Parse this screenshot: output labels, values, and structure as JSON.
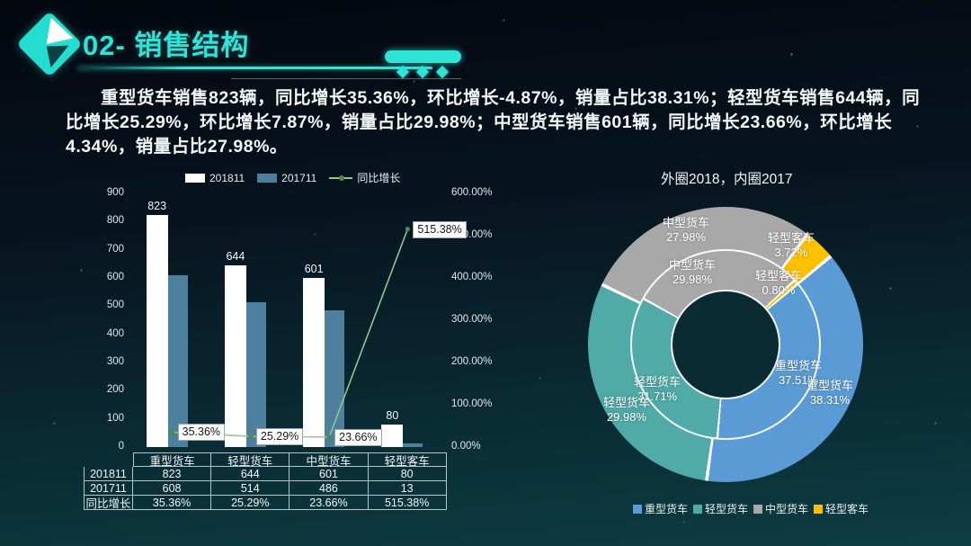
{
  "slide": {
    "title": "02- 销售结构",
    "summary": "重型货车销售823辆，同比增长35.36%，环比增长-4.87%，销量占比38.31%；轻型货车销售644辆，同比增长25.29%，环比增长7.87%，销量占比29.98%；中型货车销售601辆，同比增长23.66%，环比增长4.34%，销量占比27.98%。"
  },
  "colors": {
    "accent_cyan": "#2fe3d7",
    "bar_white": "#ffffff",
    "bar_blue": "#4d7f9e",
    "line_green": "#8bcb8b",
    "marker_green": "#4e8c4a",
    "donut_heavy": "#5b9bd5",
    "donut_light": "#4faaa8",
    "donut_medium": "#a8a8a8",
    "donut_bus": "#ffc000"
  },
  "chart_data": [
    {
      "type": "bar",
      "categories": [
        "重型货车",
        "轻型货车",
        "中型货车",
        "轻型客车"
      ],
      "series": [
        {
          "name": "201811",
          "kind": "bar",
          "color": "#ffffff",
          "values": [
            823,
            644,
            601,
            80
          ]
        },
        {
          "name": "201711",
          "kind": "bar",
          "color": "#4d7f9e",
          "values": [
            608,
            514,
            486,
            13
          ]
        },
        {
          "name": "同比增长",
          "kind": "line",
          "color": "#8bcb8b",
          "values_pct": [
            35.36,
            25.29,
            23.66,
            515.38
          ],
          "point_labels": [
            "35.36%",
            "25.29%",
            "23.66%",
            "515.38%"
          ]
        }
      ],
      "left_axis": {
        "min": 0,
        "max": 900,
        "ticks": [
          "900",
          "800",
          "700",
          "600",
          "500",
          "400",
          "300",
          "200",
          "100",
          "0"
        ]
      },
      "right_axis": {
        "min": 0,
        "max": 600,
        "ticks": [
          "600.00%",
          "500.00%",
          "400.00%",
          "300.00%",
          "200.00%",
          "100.00%",
          "0.00%"
        ]
      },
      "legend_position": "top",
      "grid": false
    },
    {
      "type": "pie",
      "title": "外圈2018，内圈2017",
      "categories": [
        "重型货车",
        "轻型货车",
        "中型货车",
        "轻型客车"
      ],
      "colors": [
        "#5b9bd5",
        "#4faaa8",
        "#a8a8a8",
        "#ffc000"
      ],
      "start_angle_deg": 50,
      "rings": [
        {
          "name": "外圈2018",
          "shares_pct": [
            38.31,
            29.98,
            27.98,
            3.72
          ]
        },
        {
          "name": "内圈2017",
          "shares_pct": [
            37.51,
            31.71,
            29.98,
            0.8
          ]
        }
      ],
      "slice_labels": [
        {
          "ring": "outer",
          "name": "中型货车",
          "pct": "27.98%"
        },
        {
          "ring": "inner",
          "name": "中型货车",
          "pct": "29.98%"
        },
        {
          "ring": "outer",
          "name": "轻型客车",
          "pct": "3.72%"
        },
        {
          "ring": "inner",
          "name": "轻型客车",
          "pct": "0.80%"
        },
        {
          "ring": "inner",
          "name": "重型货车",
          "pct": "37.51%"
        },
        {
          "ring": "outer",
          "name": "重型货车",
          "pct": "38.31%"
        },
        {
          "ring": "inner",
          "name": "轻型货车",
          "pct": "31.71%"
        },
        {
          "ring": "outer",
          "name": "轻型货车",
          "pct": "29.98%"
        }
      ],
      "legend": [
        "重型货车",
        "轻型货车",
        "中型货车",
        "轻型客车"
      ],
      "legend_position": "bottom"
    }
  ],
  "table": {
    "header": [
      "",
      "重型货车",
      "轻型货车",
      "中型货车",
      "轻型客车"
    ],
    "rows": [
      {
        "label": "201811",
        "cells": [
          "823",
          "644",
          "601",
          "80"
        ]
      },
      {
        "label": "201711",
        "cells": [
          "608",
          "514",
          "486",
          "13"
        ]
      },
      {
        "label": "同比增长",
        "cells": [
          "35.36%",
          "25.29%",
          "23.66%",
          "515.38%"
        ]
      }
    ]
  }
}
